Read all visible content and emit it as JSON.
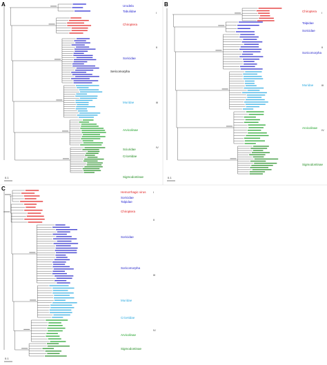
{
  "panels": {
    "a": {
      "letter": "A",
      "scale": "0.1",
      "clades": [
        "Urodela",
        "Tabulidae",
        "Chiroptera",
        "Sericomorpha",
        "Soricidae",
        "Muridae",
        "Arvicolinae",
        "Sciuridae",
        "Cricetidae",
        "Sigmodontinae"
      ],
      "roman": [
        "I",
        "II",
        "III",
        "IV"
      ]
    },
    "b": {
      "letter": "B",
      "scale": "0.1",
      "clades": [
        "Chiroptera",
        "Talpidae",
        "Soricidae",
        "Soricomorpha",
        "Muridae",
        "Arvicolinae",
        "Sigmodontinae"
      ],
      "roman": [
        "I",
        "II",
        "III",
        "IV"
      ]
    },
    "c": {
      "letter": "C",
      "scale": "0.1",
      "clades": [
        "Hemorrhagic virus",
        "Soricidae",
        "Talpidae",
        "Chiroptera",
        "Soricidae",
        "Soricomorpha",
        "Muridae",
        "Cricetidae",
        "Arvicolinae",
        "Sigmodontinae"
      ],
      "roman": [
        "I",
        "II",
        "III",
        "IV"
      ]
    }
  },
  "colors": {
    "talpidae": "#1f1fd0",
    "chiroptera": "#e01818",
    "soricidae": "#2323c8",
    "muridae": "#28a8e0",
    "arvicolinae": "#1aa024",
    "sigmodontinae": "#1e8a1e",
    "branch": "#222222"
  }
}
